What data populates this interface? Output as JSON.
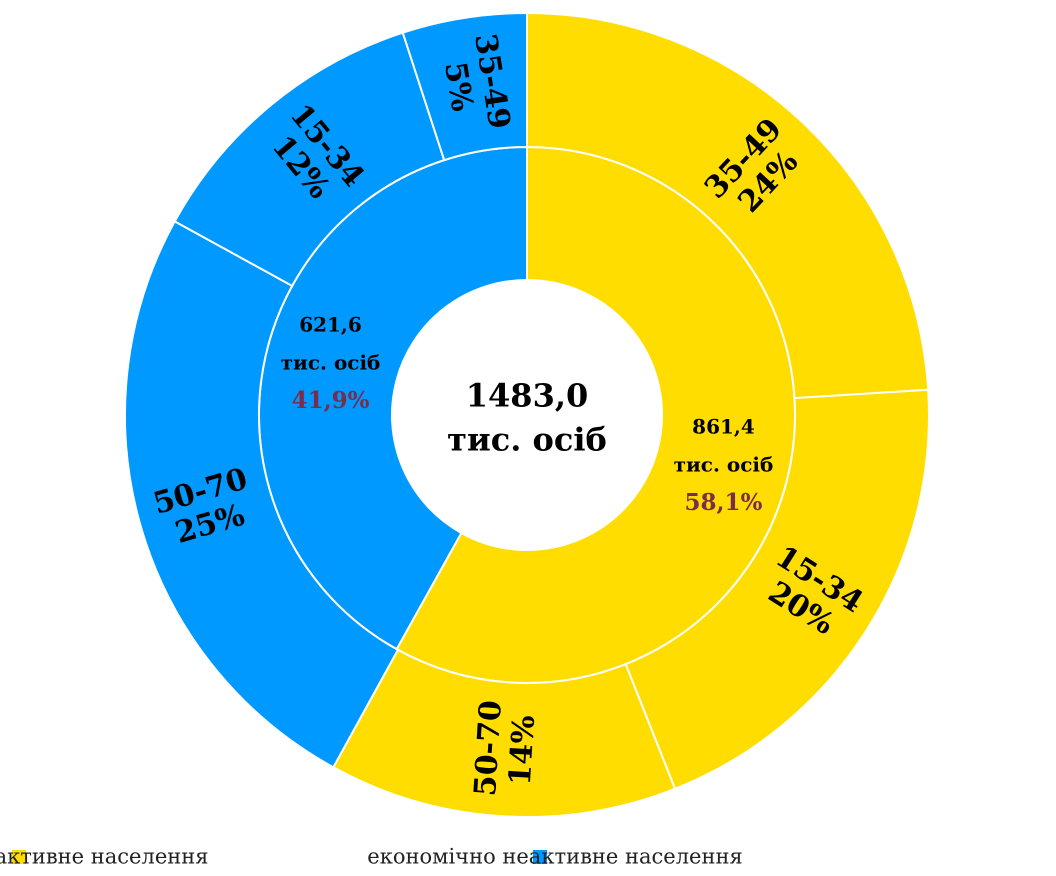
{
  "chart_data": {
    "type": "sunburst",
    "total": 1483.0,
    "total_label": "1483,0",
    "unit": "тис. осіб",
    "inner": {
      "categories": [
        "економічно активне населення",
        "економічно неактивне населення"
      ],
      "colors": [
        "#FFDD00",
        "#0099FF"
      ],
      "amounts": [
        861.4,
        621.6
      ],
      "amount_labels": [
        "861,4",
        "621,6"
      ],
      "values": [
        58.1,
        41.9
      ],
      "value_labels": [
        "58,1%",
        "41,9%"
      ]
    },
    "outer": {
      "categories": [
        "35-49",
        "15-34",
        "50-70",
        "50-70",
        "15-34",
        "35-49"
      ],
      "parent": [
        0,
        0,
        0,
        1,
        1,
        1
      ],
      "values": [
        24,
        20,
        14,
        25,
        12,
        5
      ],
      "value_labels": [
        "24%",
        "20%",
        "14%",
        "25%",
        "12%",
        "5%"
      ]
    },
    "legend": true
  }
}
